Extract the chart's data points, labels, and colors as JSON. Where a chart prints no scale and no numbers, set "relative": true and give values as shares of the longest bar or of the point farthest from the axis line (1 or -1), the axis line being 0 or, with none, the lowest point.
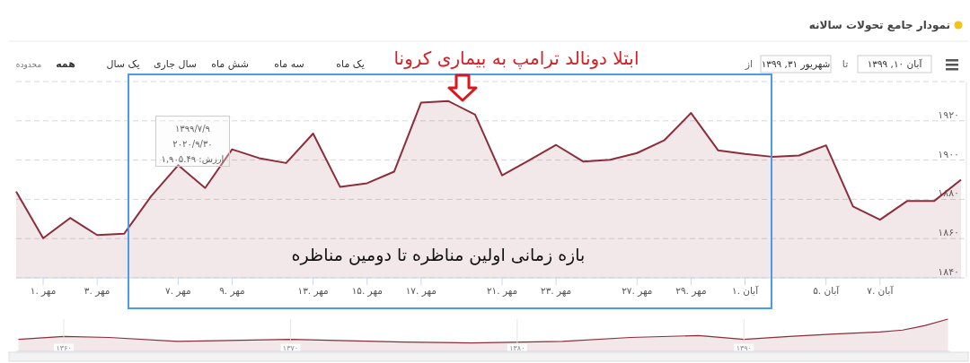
{
  "chart_data": [
    {
      "type": "area",
      "title": "نمودار جامع تحولات سالانه",
      "categories": [
        null,
        "۱. مهر",
        null,
        "۳. مهر",
        null,
        null,
        "۷. مهر",
        null,
        "۹. مهر",
        null,
        null,
        "۱۳. مهر",
        null,
        "۱۵. مهر",
        null,
        "۱۷. مهر",
        null,
        null,
        "۲۱. مهر",
        null,
        "۲۳. مهر",
        null,
        null,
        "۲۷. مهر",
        null,
        "۲۹. مهر",
        null,
        "۱. آبان",
        null,
        null,
        "۵. آبان",
        null,
        "۷. آبان",
        null,
        null,
        null
      ],
      "values": [
        1884.0,
        1860.2,
        1870.5,
        1861.8,
        1862.5,
        1881.6,
        1897.4,
        1885.8,
        1905.49,
        1901.0,
        1898.5,
        1913.5,
        1886.3,
        1888.2,
        1894.1,
        1929.3,
        1930.1,
        1923.2,
        1892.2,
        1899.9,
        1907.7,
        1899.3,
        1900.2,
        1903.6,
        1910.0,
        1924.0,
        1905.0,
        1903.1,
        1901.7,
        1902.3,
        1907.5,
        1876.4,
        1869.6,
        1879.1,
        1879.1,
        1890.0
      ],
      "color": "#8b2d3b",
      "ylim": [
        1840,
        1940
      ],
      "yticks": [
        {
          "value": 1840,
          "label": "۱۸۴۰"
        },
        {
          "value": 1860,
          "label": "۱۸۶۰"
        },
        {
          "value": 1880,
          "label": "۱۸۸۰"
        },
        {
          "value": 1900,
          "label": "۱۹۰۰"
        },
        {
          "value": 1920,
          "label": "۱۹۲۰"
        },
        {
          "value": 1940,
          "label": null
        }
      ],
      "grid": "y",
      "annotations": [
        "ابتلا دونالد ترامپ به بیماری کرونا",
        "بازه زمانی اولین مناظره تا دومین مناظره",
        {
          "text": "۱۳۹۹/۷/۹\n۲۰۲۰/۹/۳۰\nارزش: ۱,۹۰۵.۴۹",
          "x": "۹. مهر",
          "y": 1905.49
        },
        "محدوده",
        "همه",
        "یک سال",
        "سال جاری",
        "شش ماه",
        "سه ماه",
        "یک ماه",
        "از",
        "شهریور ۳۱, ۱۳۹۹",
        "تا",
        "آبان ۱۰, ۱۳۹۹"
      ]
    },
    {
      "type": "area",
      "relative": true,
      "color": "#8b2d3b",
      "x": [
        1358,
        1360,
        1362,
        1365,
        1370,
        1375,
        1378,
        1382,
        1385,
        1388,
        1390,
        1392,
        1394,
        1396,
        1397,
        1398,
        1399
      ],
      "values": [
        0.37,
        0.46,
        0.43,
        0.31,
        0.37,
        0.29,
        0.26,
        0.31,
        0.43,
        0.49,
        0.37,
        0.46,
        0.54,
        0.6,
        0.66,
        0.8,
        1
      ],
      "xlim": [
        1357.9,
        1399.1
      ],
      "xticks": [
        {
          "value": 1360,
          "label": "۱۳۶۰"
        },
        {
          "value": 1370,
          "label": "۱۳۷۰"
        },
        {
          "value": 1380,
          "label": "۱۳۸۰"
        },
        {
          "value": 1390,
          "label": "۱۳۹۰"
        }
      ],
      "tick_labels": "x",
      "grid": "x"
    }
  ]
}
